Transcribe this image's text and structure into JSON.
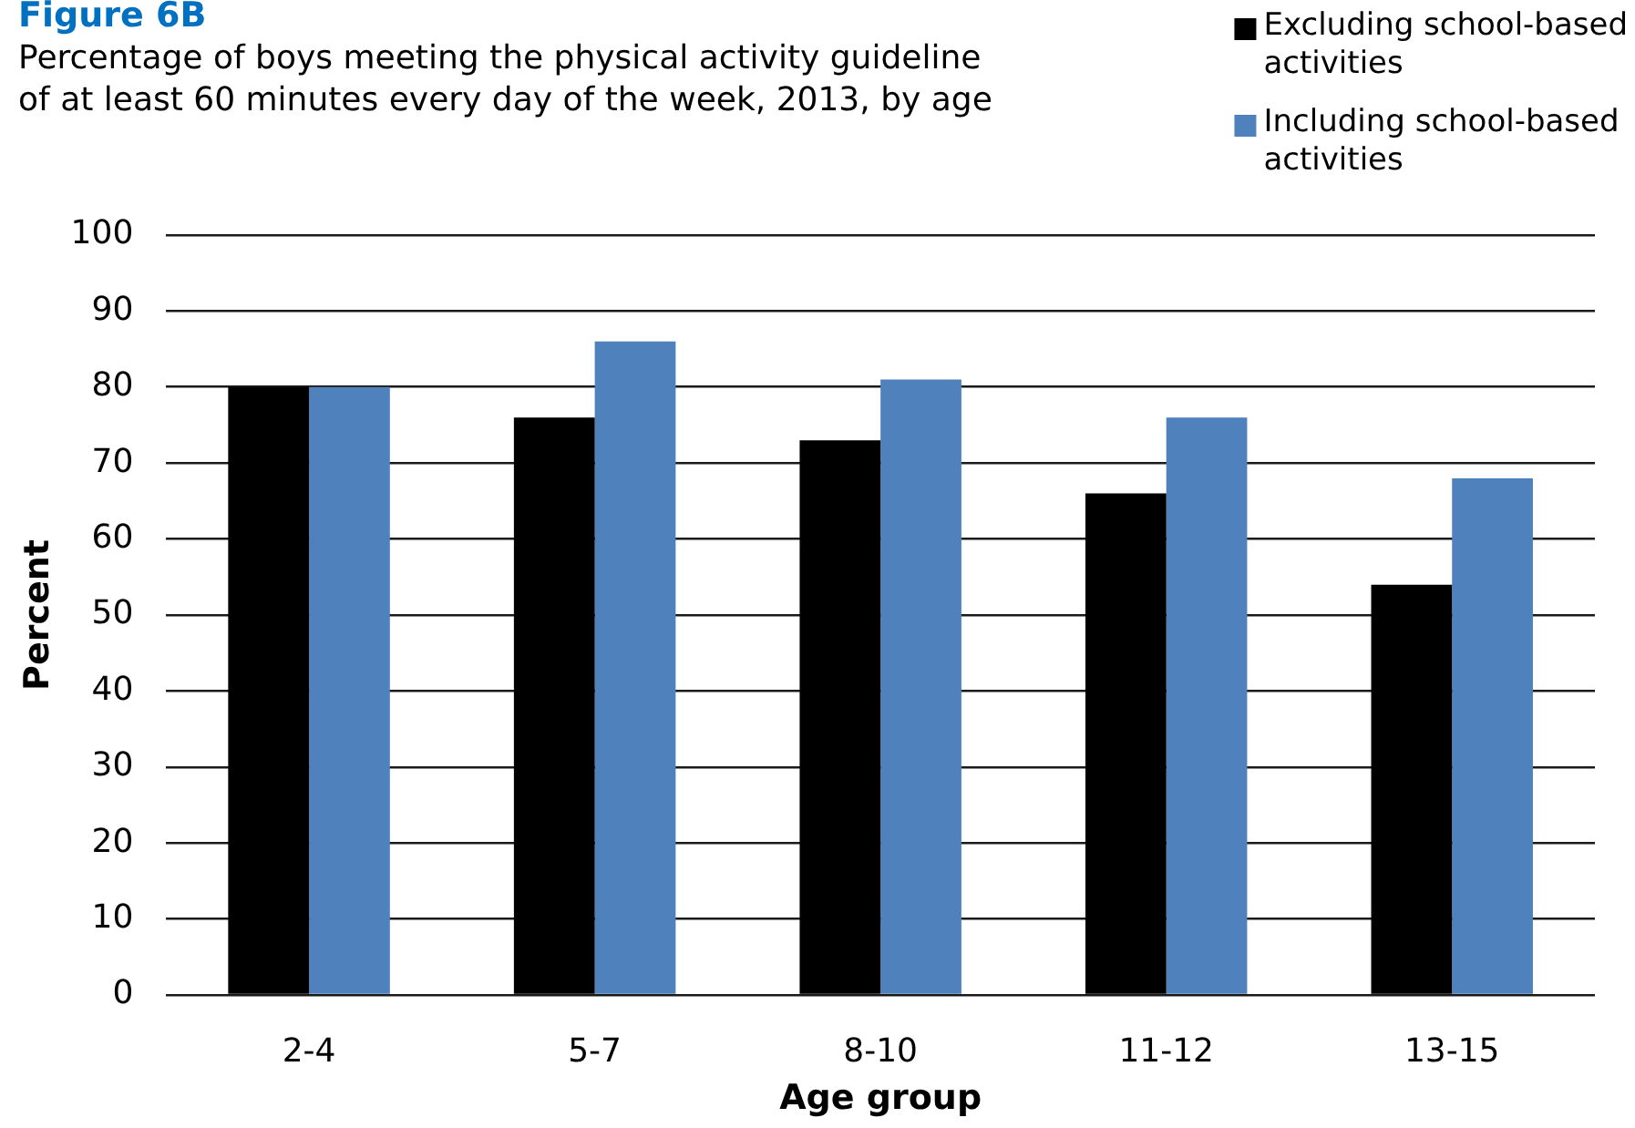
{
  "chart_data": {
    "type": "bar",
    "title": "Figure 6B",
    "subtitle": "Percentage of boys meeting the physical activity guideline of at least 60 minutes every day of the week, 2013, by age",
    "xlabel": "Age group",
    "ylabel": "Percent",
    "categories": [
      "2-4",
      "5-7",
      "8-10",
      "11-12",
      "13-15"
    ],
    "series": [
      {
        "name": "Excluding school-based activities",
        "color": "#000000",
        "values": [
          80,
          76,
          73,
          66,
          54
        ]
      },
      {
        "name": "Including school-based activities",
        "color": "#4f81bd",
        "values": [
          80,
          86,
          81,
          76,
          68
        ]
      }
    ],
    "ylim": [
      0,
      100
    ],
    "yticks": [
      0,
      10,
      20,
      30,
      40,
      50,
      60,
      70,
      80,
      90,
      100
    ],
    "grid": "y",
    "legend": "top right"
  }
}
